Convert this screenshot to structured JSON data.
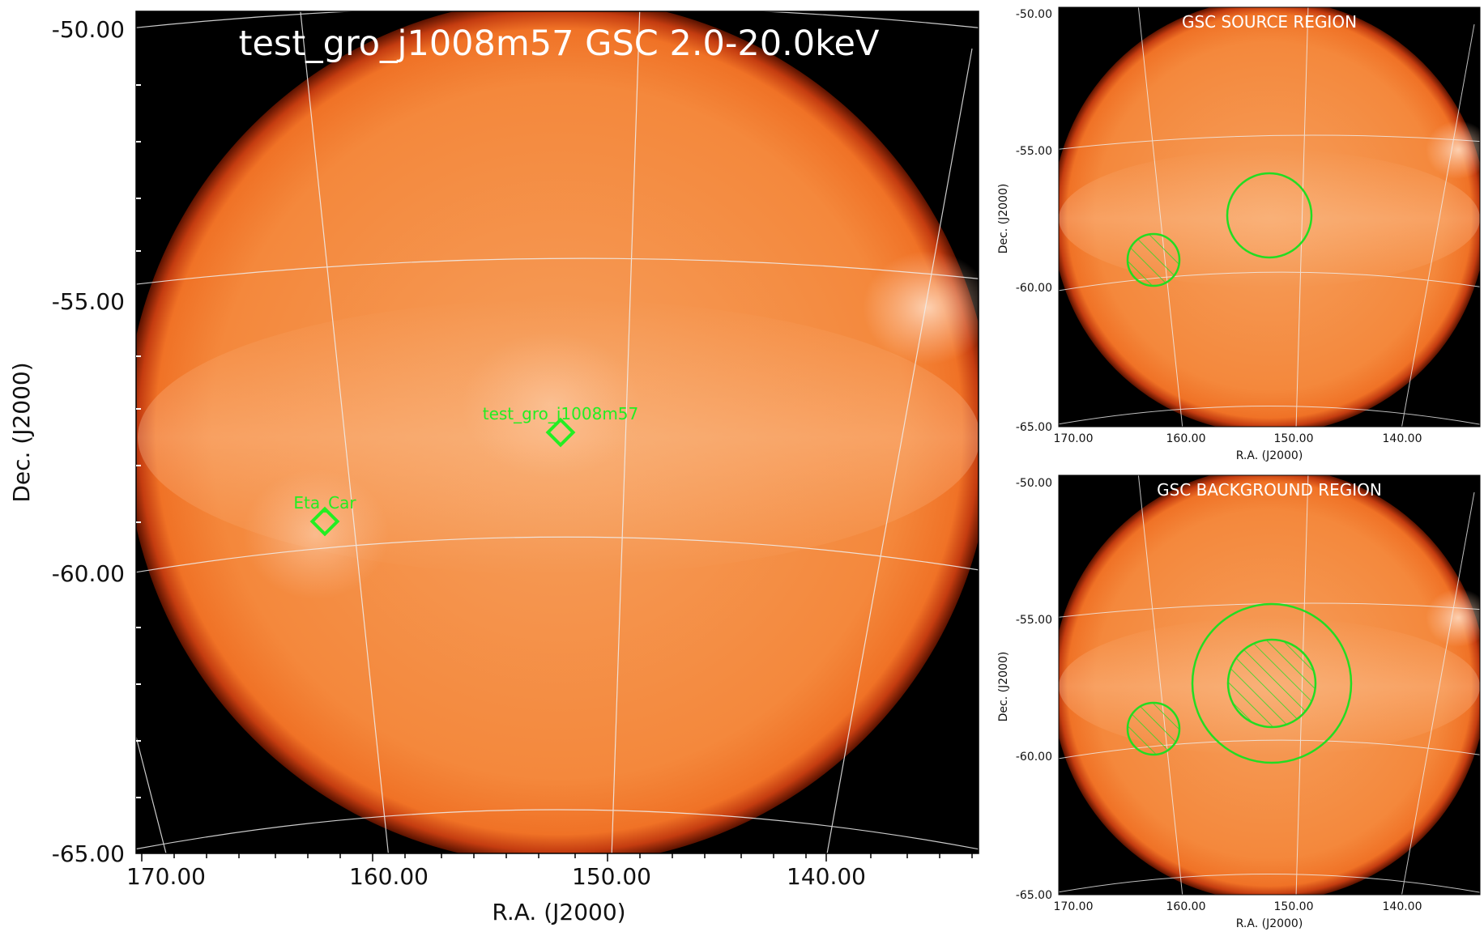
{
  "main_panel": {
    "title": "test_gro_j1008m57 GSC 2.0-20.0keV",
    "y_ticks": [
      "-50.00",
      "-55.00",
      "-60.00",
      "-65.00"
    ],
    "x_ticks": [
      "170.00",
      "160.00",
      "150.00",
      "140.00"
    ],
    "x_label": "R.A. (J2000)",
    "y_label": "Dec. (J2000)",
    "sources": [
      {
        "label": "test_gro_j1008m57",
        "ra": 152.1,
        "dec": -57.5
      },
      {
        "label": "Eta_Car",
        "ra": 163.0,
        "dec": -59.2
      }
    ]
  },
  "source_panel": {
    "title": "GSC SOURCE REGION",
    "y_ticks": [
      "-50.00",
      "-55.00",
      "-60.00",
      "-65.00"
    ],
    "x_ticks": [
      "170.00",
      "160.00",
      "150.00",
      "140.00"
    ],
    "x_label": "R.A. (J2000)",
    "y_label": "Dec. (J2000)"
  },
  "background_panel": {
    "title": "GSC BACKGROUND REGION",
    "y_ticks": [
      "-50.00",
      "-55.00",
      "-60.00",
      "-65.00"
    ],
    "x_ticks": [
      "170.00",
      "160.00",
      "150.00",
      "140.00"
    ],
    "x_label": "R.A. (J2000)",
    "y_label": "Dec. (J2000)"
  },
  "colors": {
    "sky": "#f58a3c",
    "region": "#22dd22",
    "grid": "#e8e8e8",
    "background": "#000000"
  }
}
